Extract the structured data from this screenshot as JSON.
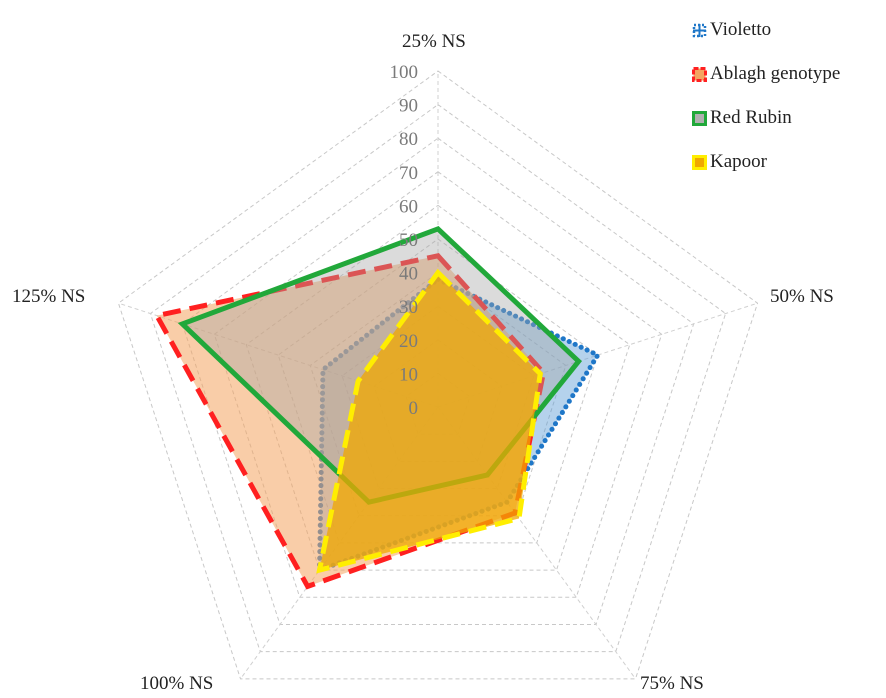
{
  "chart_data": {
    "type": "radar",
    "categories": [
      "25% NS",
      "50% NS",
      "75% NS",
      "100% NS",
      "125% NS"
    ],
    "ticks": [
      0,
      10,
      20,
      30,
      40,
      50,
      60,
      70,
      80,
      90,
      100
    ],
    "range": [
      0,
      100
    ],
    "grid": true,
    "legend_position": "top-right",
    "series": [
      {
        "name": "Violetto",
        "values": [
          38,
          50,
          35,
          60,
          36
        ],
        "stroke": "#1f77c8",
        "fill": "#5b9bd5",
        "fill_opacity": 0.45,
        "dash": "dotted",
        "swatch": "cross"
      },
      {
        "name": "Ablagh genotype",
        "values": [
          45,
          33,
          39,
          66,
          88
        ],
        "stroke": "#ff2020",
        "fill": "#f4a460",
        "fill_opacity": 0.55,
        "dash": "dashed",
        "swatch": "square"
      },
      {
        "name": "Red Rubin",
        "values": [
          53,
          44,
          25,
          35,
          80
        ],
        "stroke": "#21a83a",
        "fill": "#a5a5a5",
        "fill_opacity": 0.4,
        "dash": "solid",
        "swatch": "square"
      },
      {
        "name": "Kapoor",
        "values": [
          40,
          32,
          41,
          60,
          25
        ],
        "stroke": "#ffee00",
        "fill": "#f0a800",
        "fill_opacity": 0.75,
        "dash": "dashed",
        "swatch": "square"
      }
    ]
  }
}
